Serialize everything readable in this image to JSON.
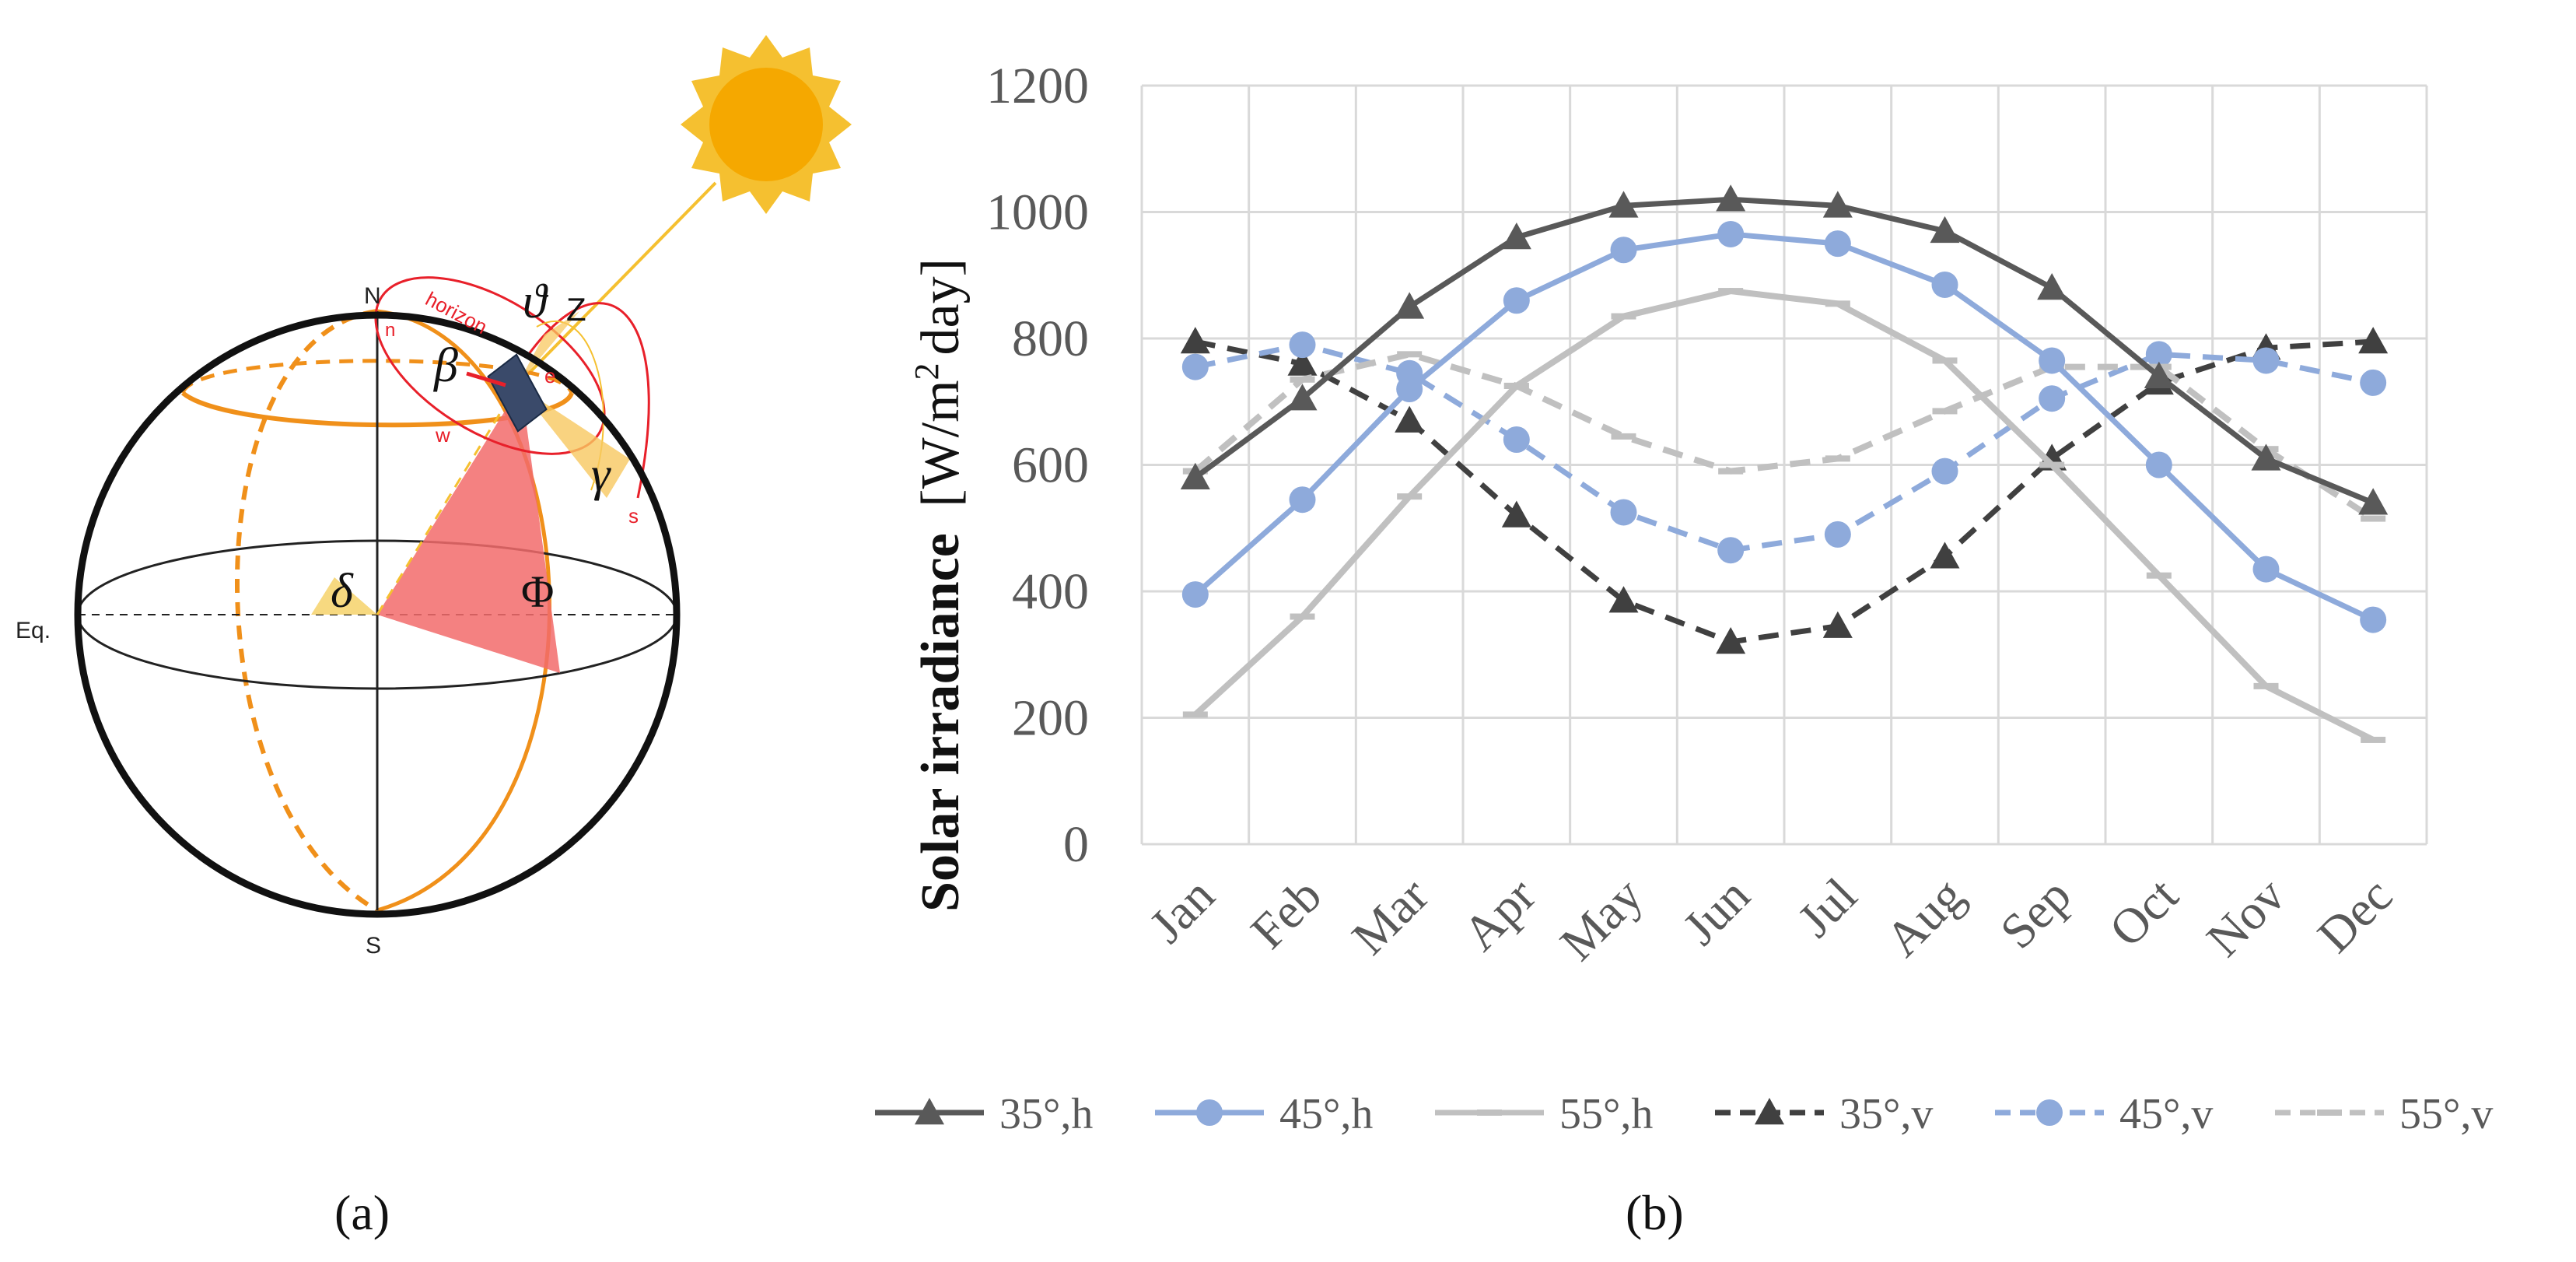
{
  "panel_a": {
    "caption": "(a)",
    "labels": {
      "north": "N",
      "south": "S",
      "equator": "Eq.",
      "horizon": "horizon",
      "west": "w",
      "east": "e",
      "south_small": "s",
      "north_small": "n",
      "beta": "β",
      "gamma": "γ",
      "delta": "δ",
      "phi": "Φ",
      "theta": "ϑ",
      "theta_sub": "Z"
    },
    "icons": [
      "sun-icon",
      "solar-panel-icon",
      "globe-icon"
    ],
    "colors": {
      "sun": "#f5a800",
      "sun_ray": "#f5c030",
      "horizon": "#e8202a",
      "meridian": "#f0901a",
      "latitude_wedge": "#f26b6b"
    }
  },
  "panel_b": {
    "caption": "(b)"
  },
  "chart_data": {
    "type": "line",
    "title": "",
    "xlabel": "",
    "ylabel": "Solar irradiance",
    "ylabel_unit_pre": "[W/m",
    "ylabel_unit_sup": "2",
    "ylabel_unit_post": "day]",
    "ylim": [
      0,
      1200
    ],
    "yticks": [
      "0",
      "200",
      "400",
      "600",
      "800",
      "1000",
      "1200"
    ],
    "categories": [
      "Jan",
      "Feb",
      "Mar",
      "Apr",
      "May",
      "Jun",
      "Jul",
      "Aug",
      "Sep",
      "Oct",
      "Nov",
      "Dec"
    ],
    "grid": true,
    "legend_position": "bottom",
    "series": [
      {
        "name": "35°,h",
        "color": "#595959",
        "dash": "solid",
        "marker": "triangle",
        "values": [
          580,
          705,
          850,
          960,
          1010,
          1020,
          1010,
          970,
          880,
          740,
          610,
          540
        ]
      },
      {
        "name": "45°,h",
        "color": "#8eaadb",
        "dash": "solid",
        "marker": "circle",
        "values": [
          395,
          545,
          720,
          860,
          940,
          965,
          950,
          885,
          765,
          600,
          435,
          355
        ]
      },
      {
        "name": "55°,h",
        "color": "#c0c0c0",
        "dash": "solid",
        "marker": "dash",
        "values": [
          205,
          360,
          550,
          725,
          835,
          875,
          855,
          765,
          600,
          425,
          250,
          165
        ]
      },
      {
        "name": "35°,v",
        "color": "#404040",
        "dash": "dashed",
        "marker": "triangle",
        "values": [
          795,
          760,
          670,
          520,
          385,
          320,
          345,
          455,
          610,
          730,
          785,
          795
        ]
      },
      {
        "name": "45°,v",
        "color": "#8eaadb",
        "dash": "dashed",
        "marker": "circle",
        "values": [
          755,
          790,
          745,
          640,
          525,
          465,
          490,
          590,
          705,
          775,
          765,
          730
        ]
      },
      {
        "name": "55°,v",
        "color": "#c0c0c0",
        "dash": "dashed",
        "marker": "dash",
        "values": [
          590,
          735,
          775,
          725,
          645,
          590,
          610,
          685,
          755,
          755,
          625,
          515
        ]
      }
    ]
  }
}
